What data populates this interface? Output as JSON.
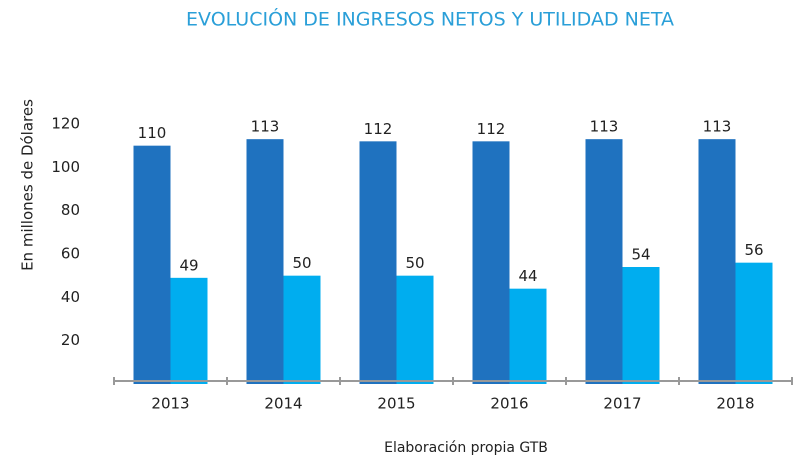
{
  "chart_data": {
    "type": "bar",
    "title": "EVOLUCIÓN DE INGRESOS NETOS Y UTILIDAD NETA",
    "y_label": "En millones de Dólares",
    "note": "Elaboración propia GTB",
    "categories": [
      "2013",
      "2014",
      "2015",
      "2016",
      "2017",
      "2018"
    ],
    "series": [
      {
        "color": "#1f72bf",
        "values": [
          110,
          113,
          112,
          112,
          113,
          113
        ]
      },
      {
        "color": "#00adef",
        "values": [
          49,
          50,
          50,
          44,
          54,
          56
        ]
      }
    ],
    "ylim": [
      0,
      120
    ],
    "yticks": [
      20,
      40,
      60,
      80,
      100,
      120
    ],
    "grid": false
  }
}
